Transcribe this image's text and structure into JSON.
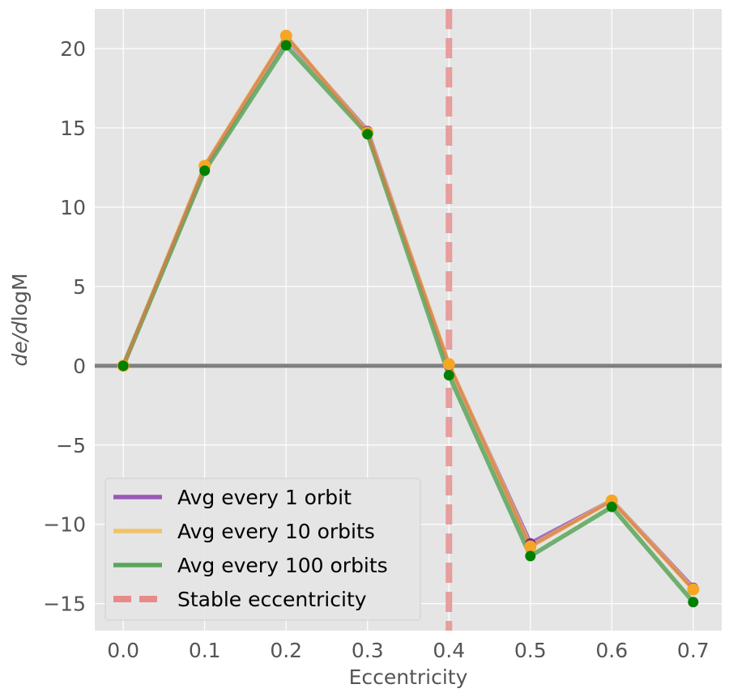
{
  "chart_data": {
    "type": "line",
    "xlabel": "Eccentricity",
    "ylabel_italic": "de/d",
    "ylabel_rest": "logM",
    "xlim": [
      -0.035,
      0.735
    ],
    "ylim": [
      -16.7,
      22.5
    ],
    "xticks": [
      0.0,
      0.1,
      0.2,
      0.3,
      0.4,
      0.5,
      0.6,
      0.7
    ],
    "xtick_labels": [
      "0.0",
      "0.1",
      "0.2",
      "0.3",
      "0.4",
      "0.5",
      "0.6",
      "0.7"
    ],
    "yticks": [
      -15,
      -10,
      -5,
      0,
      5,
      10,
      15,
      20
    ],
    "ytick_labels": [
      "−15",
      "−10",
      "−5",
      "0",
      "5",
      "10",
      "15",
      "20"
    ],
    "grid": true,
    "background": "#e5e5e5",
    "x": [
      0.0,
      0.1,
      0.2,
      0.3,
      0.4,
      0.5,
      0.6,
      0.7
    ],
    "series": [
      {
        "name": "Avg every 1 orbit",
        "line_color": "#9b59b6",
        "marker_color": "#7b2d8e",
        "values": [
          0.0,
          12.5,
          20.7,
          14.8,
          0.0,
          -11.2,
          -8.5,
          -14.0
        ]
      },
      {
        "name": "Avg every 10 orbits",
        "line_color": "#f0c36a",
        "marker_color": "#f5a623",
        "values": [
          0.0,
          12.6,
          20.8,
          14.7,
          0.1,
          -11.4,
          -8.5,
          -14.1
        ]
      },
      {
        "name": "Avg every 100 orbits",
        "line_color": "#5aa65a",
        "marker_color": "#008000",
        "values": [
          0.0,
          12.3,
          20.2,
          14.6,
          -0.6,
          -12.0,
          -8.9,
          -14.9
        ]
      }
    ],
    "overlay_line_color": "#d97a4a",
    "zero_line_color": "#808080",
    "vertical_line": {
      "name": "Stable eccentricity",
      "x": 0.4,
      "color": "#e88a8a"
    },
    "legend_placement": "lower-left"
  }
}
